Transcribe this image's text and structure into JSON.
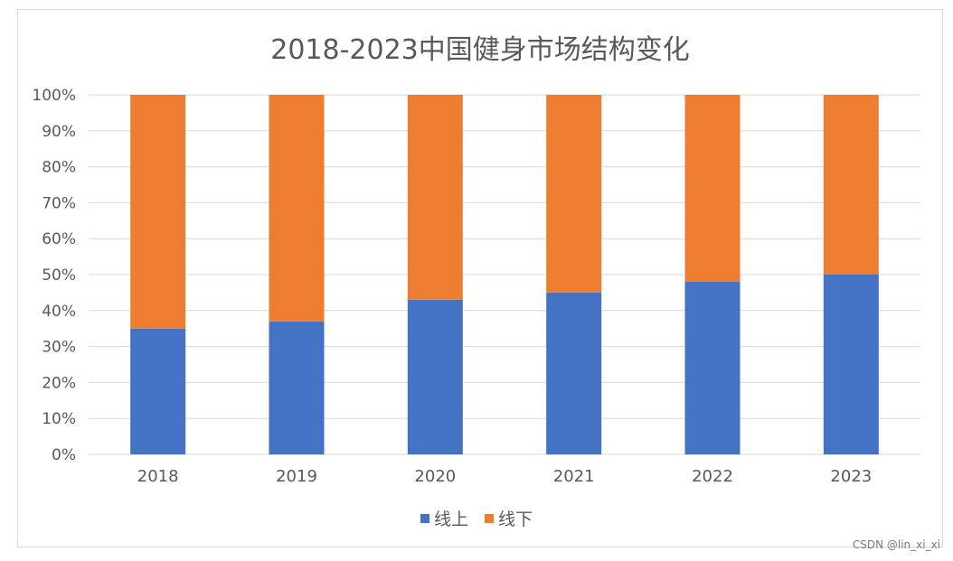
{
  "title": "2018-2023中国健身市场结构变化",
  "watermark": "CSDN @lin_xi_xi",
  "colors": {
    "online": "#4472C4",
    "offline": "#ED7D31",
    "grid": "#d9d9d9",
    "text": "#595959"
  },
  "chart_data": {
    "type": "bar",
    "stacked": true,
    "percent": true,
    "title": "2018-2023中国健身市场结构变化",
    "categories": [
      "2018",
      "2019",
      "2020",
      "2021",
      "2022",
      "2023"
    ],
    "series": [
      {
        "name": "线上",
        "values": [
          35,
          37,
          43,
          45,
          48,
          50
        ]
      },
      {
        "name": "线下",
        "values": [
          65,
          63,
          57,
          55,
          52,
          50
        ]
      }
    ],
    "ylim": [
      0,
      100
    ],
    "yticks": [
      "0%",
      "10%",
      "20%",
      "30%",
      "40%",
      "50%",
      "60%",
      "70%",
      "80%",
      "90%",
      "100%"
    ],
    "grid": true,
    "legend": "bottom"
  }
}
